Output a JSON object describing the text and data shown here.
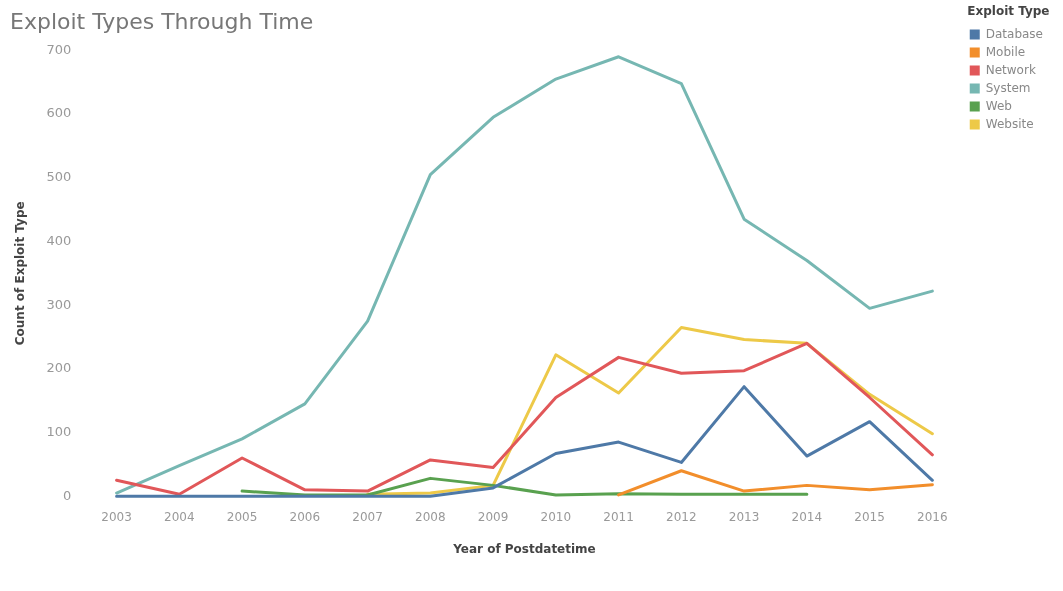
{
  "chart_data": {
    "type": "line",
    "title": "Exploit Types Through Time",
    "xlabel": "Year of Postdatetime",
    "ylabel": "Count of Exploit Type",
    "legend_title": "Exploit Type",
    "categories": [
      "2003",
      "2004",
      "2005",
      "2006",
      "2007",
      "2008",
      "2009",
      "2010",
      "2011",
      "2012",
      "2013",
      "2014",
      "2015",
      "2016"
    ],
    "series": [
      {
        "name": "Database",
        "color": "#4e79a7",
        "values": [
          0,
          0,
          0,
          0,
          0,
          0,
          13,
          67,
          85,
          53,
          172,
          63,
          117,
          25
        ]
      },
      {
        "name": "Mobile",
        "color": "#f28e2b",
        "values": [
          null,
          null,
          null,
          null,
          null,
          null,
          null,
          null,
          2,
          40,
          8,
          17,
          10,
          18
        ]
      },
      {
        "name": "Network",
        "color": "#e15759",
        "values": [
          25,
          3,
          60,
          10,
          8,
          57,
          45,
          155,
          218,
          193,
          197,
          240,
          155,
          65
        ]
      },
      {
        "name": "System",
        "color": "#76b7b2",
        "values": [
          5,
          48,
          90,
          145,
          275,
          505,
          595,
          655,
          690,
          648,
          435,
          370,
          295,
          322
        ]
      },
      {
        "name": "Web",
        "color": "#59a14f",
        "values": [
          null,
          null,
          8,
          2,
          2,
          28,
          17,
          2,
          4,
          3,
          3,
          3,
          null,
          null
        ]
      },
      {
        "name": "Website",
        "color": "#edc948",
        "values": [
          null,
          null,
          null,
          null,
          3,
          5,
          17,
          222,
          162,
          265,
          246,
          240,
          160,
          98
        ]
      }
    ],
    "ylim": [
      0,
      700
    ],
    "yticks": [
      0,
      100,
      200,
      300,
      400,
      500,
      600,
      700
    ],
    "grid": false,
    "legend": "top right",
    "marker": "none",
    "line_style": "solid"
  }
}
